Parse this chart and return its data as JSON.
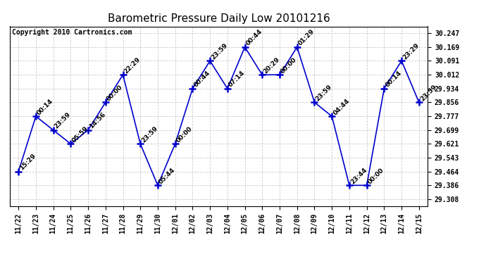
{
  "title": "Barometric Pressure Daily Low 20101216",
  "copyright": "Copyright 2010 Cartronics.com",
  "x_labels": [
    "11/22",
    "11/23",
    "11/24",
    "11/25",
    "11/26",
    "11/27",
    "11/28",
    "11/29",
    "11/30",
    "12/01",
    "12/02",
    "12/03",
    "12/04",
    "12/05",
    "12/06",
    "12/07",
    "12/08",
    "12/09",
    "12/10",
    "12/11",
    "12/12",
    "12/13",
    "12/14",
    "12/15"
  ],
  "y_values": [
    29.464,
    29.777,
    29.699,
    29.621,
    29.699,
    29.856,
    30.012,
    29.621,
    29.386,
    29.621,
    29.934,
    30.091,
    29.934,
    30.169,
    30.012,
    30.012,
    30.169,
    29.856,
    29.777,
    29.386,
    29.386,
    29.934,
    30.091,
    29.856
  ],
  "annotations": [
    "15:29",
    "00:14",
    "23:59",
    "05:59",
    "14:56",
    "00:00",
    "22:29",
    "23:59",
    "05:44",
    "00:00",
    "00:44",
    "23:59",
    "07:14",
    "00:44",
    "20:29",
    "00:00",
    "01:29",
    "23:59",
    "04:44",
    "23:44",
    "00:00",
    "00:14",
    "23:29",
    "23:59"
  ],
  "line_color": "#0000cc",
  "ylim_min": 29.2695,
  "ylim_max": 30.286,
  "yticks": [
    29.308,
    29.386,
    29.464,
    29.543,
    29.621,
    29.699,
    29.777,
    29.856,
    29.934,
    30.012,
    30.091,
    30.169,
    30.247
  ],
  "grid_color": "#cccccc",
  "bg_color": "#ffffff",
  "title_fontsize": 11,
  "annot_fontsize": 6.5,
  "copy_fontsize": 7,
  "tick_fontsize": 7
}
